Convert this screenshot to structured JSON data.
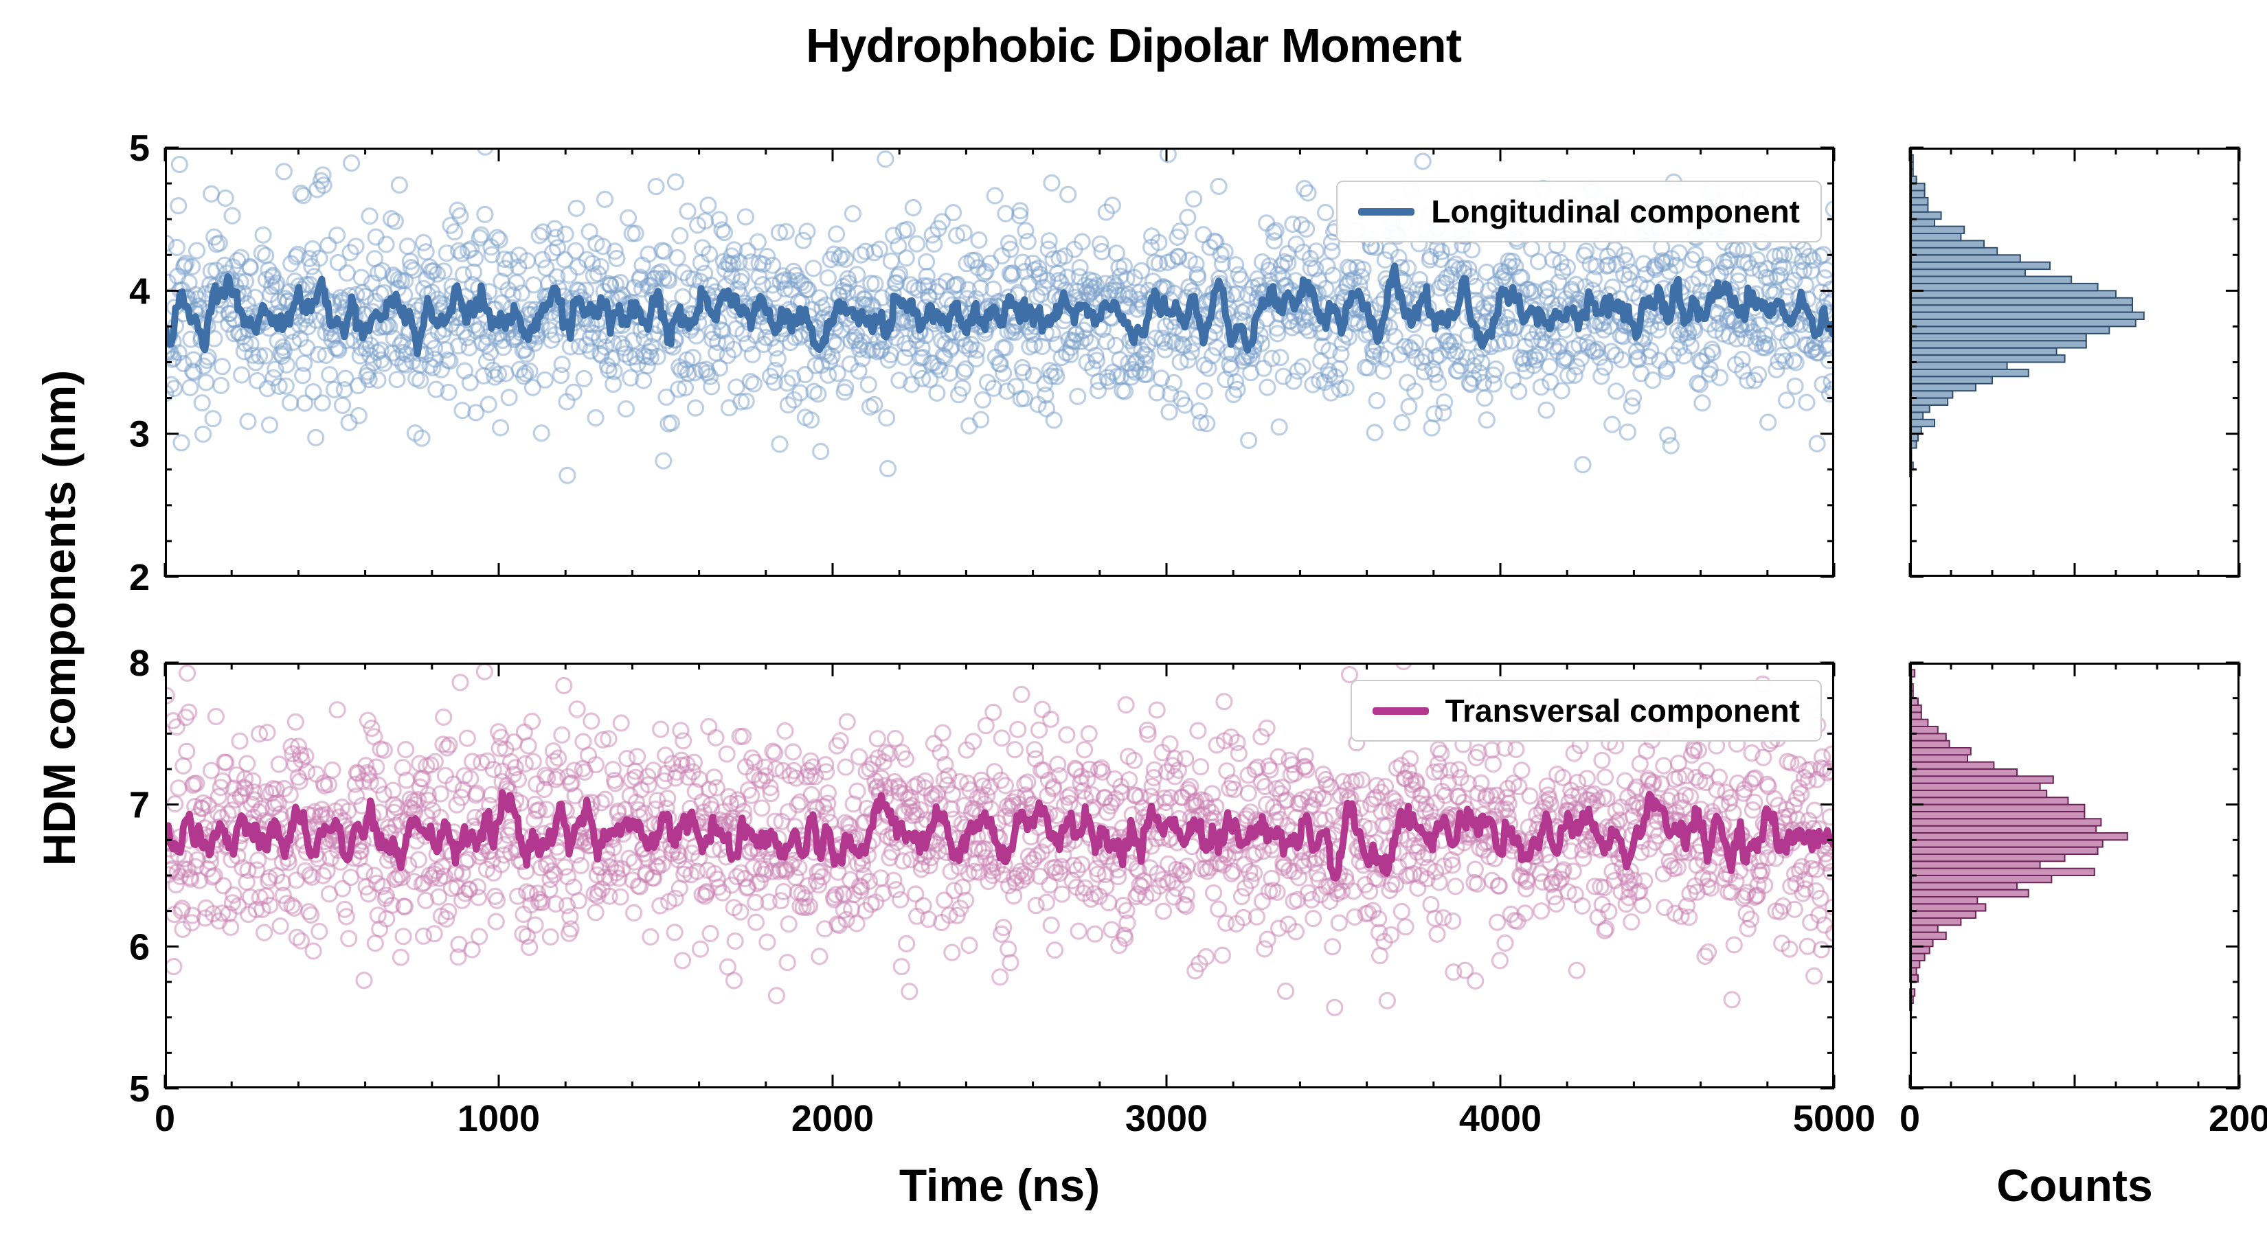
{
  "title": "Hydrophobic Dipolar Moment",
  "labels": {
    "y_axis": "HDM components (nm)",
    "x_axis_time": "Time (ns)",
    "x_axis_counts": "Counts"
  },
  "chart_data": [
    {
      "id": "longitudinal",
      "type": "scatter",
      "legend_label": "Longitudinal component",
      "description": "Raw time-series samples (open circles) with a thick running-average line; right side shows the horizontal histogram of the same values.",
      "x_range": [
        0,
        5000
      ],
      "x_tick_labels": [
        0,
        1000,
        2000,
        3000,
        4000,
        5000
      ],
      "x_minor_step": 200,
      "show_x_tick_labels": false,
      "y_range": [
        2,
        5
      ],
      "y_tick_labels": [
        2,
        3,
        4,
        5
      ],
      "y_minor_step": 0.25,
      "n_points": 2200,
      "mean": 3.85,
      "sd": 0.34,
      "smooth_window": 6,
      "seed": 20,
      "line_color": "#3e6fa7",
      "scatter_color": "#7aa0c9",
      "hist_fill": "#8ca7c4",
      "hist_edge": "#2f4e6e",
      "bin_width": 0.05,
      "hist_x_range": [
        0,
        200
      ],
      "hist_major_ticks": [
        0,
        100,
        200
      ],
      "hist_tick_labels": [
        0,
        200
      ],
      "hist_minor_step": 25,
      "show_hist_tick_labels": false
    },
    {
      "id": "transversal",
      "type": "scatter",
      "legend_label": "Transversal component",
      "description": "Raw time-series samples (open circles) with a thick running-average line; right side shows the horizontal histogram of the same values.",
      "x_range": [
        0,
        5000
      ],
      "x_tick_labels": [
        0,
        1000,
        2000,
        3000,
        4000,
        5000
      ],
      "x_minor_step": 200,
      "show_x_tick_labels": true,
      "y_range": [
        5,
        8
      ],
      "y_tick_labels": [
        5,
        6,
        7,
        8
      ],
      "y_minor_step": 0.25,
      "n_points": 2200,
      "mean": 6.78,
      "sd": 0.37,
      "smooth_window": 6,
      "seed": 77,
      "line_color": "#b2388f",
      "scatter_color": "#c97fb2",
      "hist_fill": "#c587b1",
      "hist_edge": "#6d2458",
      "bin_width": 0.05,
      "hist_x_range": [
        0,
        200
      ],
      "hist_major_ticks": [
        0,
        100,
        200
      ],
      "hist_tick_labels": [
        0,
        200
      ],
      "hist_minor_step": 25,
      "show_hist_tick_labels": true
    }
  ]
}
